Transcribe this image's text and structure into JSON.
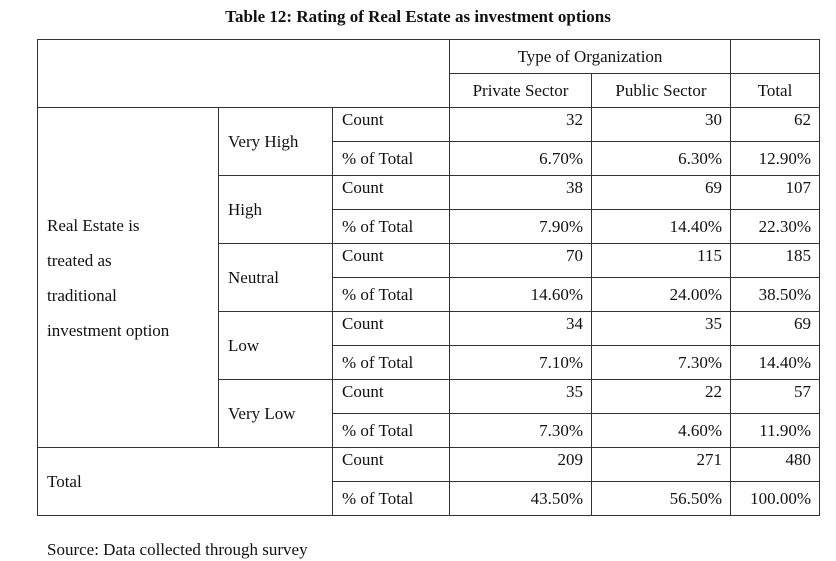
{
  "title": "Table 12: Rating of Real Estate as investment options",
  "header": {
    "group_label": "Type of Organization",
    "columns": [
      "Private Sector",
      "Public Sector",
      "Total"
    ]
  },
  "row_group_label": "Real Estate is treated as traditional investment option",
  "row_group_lines": [
    "Real Estate is",
    "treated as",
    "traditional",
    "investment option"
  ],
  "measures": {
    "count": "Count",
    "percent": "% of Total"
  },
  "ratings": [
    {
      "label": "Very High",
      "count": [
        "32",
        "30",
        "62"
      ],
      "percent": [
        "6.70%",
        "6.30%",
        "12.90%"
      ]
    },
    {
      "label": "High",
      "count": [
        "38",
        "69",
        "107"
      ],
      "percent": [
        "7.90%",
        "14.40%",
        "22.30%"
      ]
    },
    {
      "label": "Neutral",
      "count": [
        "70",
        "115",
        "185"
      ],
      "percent": [
        "14.60%",
        "24.00%",
        "38.50%"
      ]
    },
    {
      "label": "Low",
      "count": [
        "34",
        "35",
        "69"
      ],
      "percent": [
        "7.10%",
        "7.30%",
        "14.40%"
      ]
    },
    {
      "label": "Very Low",
      "count": [
        "35",
        "22",
        "57"
      ],
      "percent": [
        "7.30%",
        "4.60%",
        "11.90%"
      ]
    }
  ],
  "total": {
    "label": "Total",
    "count": [
      "209",
      "271",
      "480"
    ],
    "percent": [
      "43.50%",
      "56.50%",
      "100.00%"
    ]
  },
  "source": "Source: Data collected through survey"
}
